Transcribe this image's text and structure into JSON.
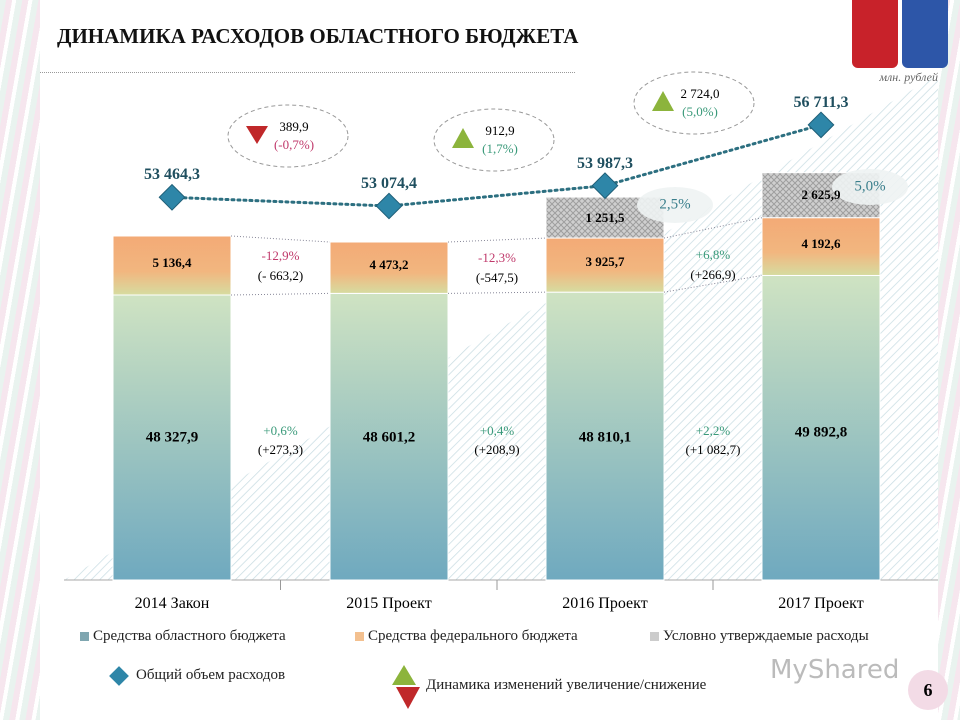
{
  "title": "ДИНАМИКА РАСХОДОВ ОБЛАСТНОГО БЮДЖЕТА",
  "unit": "млн. рублей",
  "page_number": "6",
  "watermark": "MyShared",
  "colors": {
    "regional": "#7fb3c4",
    "federal": "#f3b07c",
    "conditional": "#bdbdbd",
    "total": "#2e86a8",
    "increase": "#8cb43c",
    "decrease": "#c0282a",
    "neg_text": "#c0396b",
    "pos_text": "#3a9a7a"
  },
  "chart_data": {
    "type": "bar",
    "stacked": true,
    "categories": [
      "2014 Закон",
      "2015 Проект",
      "2016 Проект",
      "2017 Проект"
    ],
    "series": [
      {
        "name": "Средства областного бюджета",
        "values": [
          48327.9,
          48601.2,
          48810.1,
          49892.8
        ],
        "labels": [
          "48 327,9",
          "48 601,2",
          "48 810,1",
          "49 892,8"
        ]
      },
      {
        "name": "Средства федерального бюджета",
        "values": [
          5136.4,
          4473.2,
          3925.7,
          4192.6
        ],
        "labels": [
          "5 136,4",
          "4 473,2",
          "3 925,7",
          "4 192,6"
        ]
      },
      {
        "name": "Условно утверждаемые расходы",
        "values": [
          null,
          null,
          1251.5,
          2625.9
        ],
        "labels": [
          "",
          "",
          "1 251,5",
          "2 625,9"
        ]
      }
    ],
    "line": {
      "name": "Общий объем расходов",
      "values": [
        53464.3,
        53074.4,
        53987.3,
        56711.3
      ],
      "labels": [
        "53 464,3",
        "53 074,4",
        "53 987,3",
        "56 711,3"
      ]
    },
    "total_changes": [
      {
        "value": "389,9",
        "pct": "(-0,7%)",
        "direction": "down"
      },
      {
        "value": "912,9",
        "pct": "(1,7%)",
        "direction": "up"
      },
      {
        "value": "2 724,0",
        "pct": "(5,0%)",
        "direction": "up"
      }
    ],
    "federal_changes": [
      {
        "pct": "-12,9%",
        "abs": "(- 663,2)"
      },
      {
        "pct": "-12,3%",
        "abs": "(-547,5)"
      },
      {
        "pct": "+6,8%",
        "abs": "(+266,9)"
      }
    ],
    "regional_changes": [
      {
        "pct": "+0,6%",
        "abs": "(+273,3)"
      },
      {
        "pct": "+0,4%",
        "abs": "(+208,9)"
      },
      {
        "pct": "+2,2%",
        "abs": "(+1 082,7)"
      }
    ],
    "conditional_shares": [
      "2,5%",
      "5,0%"
    ],
    "legend": {
      "regional": "Средства областного бюджета",
      "federal": "Средства федерального бюджета",
      "conditional": "Условно утверждаемые расходы",
      "total": "Общий объем расходов",
      "dynamics": "Динамика изменений увеличение/снижение"
    }
  }
}
